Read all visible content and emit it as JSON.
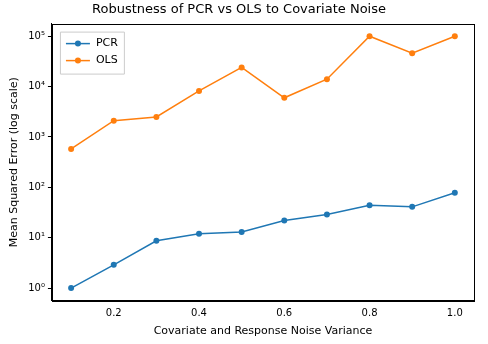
{
  "chart_data": {
    "type": "line",
    "title": "Robustness of PCR vs OLS to Covariate Noise",
    "x_label": "Covariate and Response Noise Variance",
    "y_label": "Mean Squared Error (log scale)",
    "x": [
      0.1,
      0.2,
      0.3,
      0.4,
      0.5,
      0.6,
      0.7,
      0.8,
      0.9,
      1.0
    ],
    "series": [
      {
        "name": "PCR",
        "color": "#1f77b4",
        "marker": "circle",
        "values": [
          1.0,
          2.9,
          8.7,
          12,
          13,
          22,
          29,
          44,
          41,
          78
        ]
      },
      {
        "name": "OLS",
        "color": "#ff7f0e",
        "marker": "circle",
        "values": [
          580,
          2100,
          2500,
          8200,
          24000,
          6000,
          14000,
          100000,
          46000,
          100000
        ]
      }
    ],
    "xlim": [
      0.055,
      1.045
    ],
    "xticks": [
      0.2,
      0.4,
      0.6,
      0.8,
      {
        "value": 1,
        "label": "1.0"
      }
    ],
    "ylim": [
      0.56,
      178000
    ],
    "yticks": [
      {
        "value": 1,
        "label": "10⁰"
      },
      {
        "value": 10,
        "label": "10¹"
      },
      {
        "value": 100,
        "label": "10²"
      },
      {
        "value": 1000,
        "label": "10³"
      },
      {
        "value": 10000,
        "label": "10⁴"
      },
      {
        "value": 100000,
        "label": "10⁵"
      }
    ],
    "log": "y",
    "grid": false,
    "legend": "upper left"
  }
}
